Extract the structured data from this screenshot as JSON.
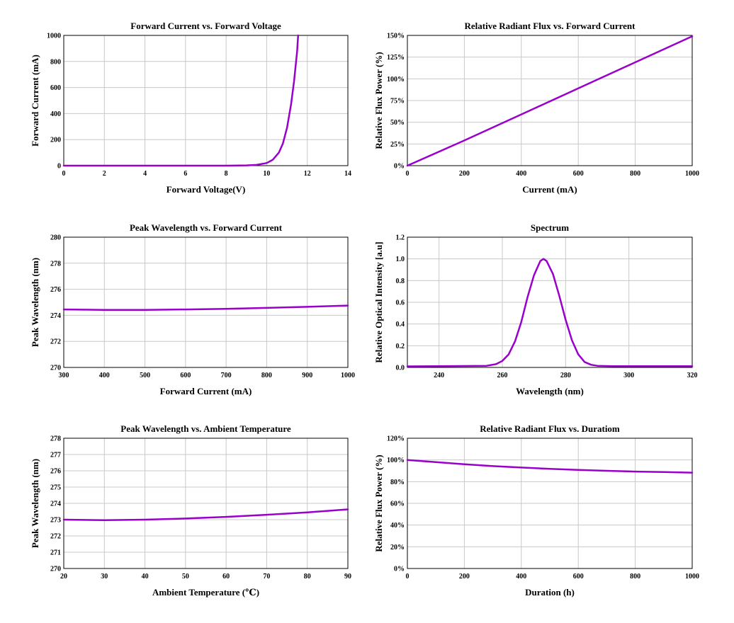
{
  "chart_data": [
    {
      "type": "line",
      "title": "Forward Current vs. Forward Voltage",
      "xlabel": "Forward Voltage(V)",
      "ylabel": "Forward Current (mA)",
      "xlim": [
        0,
        14
      ],
      "ylim": [
        0,
        1000
      ],
      "xticks": [
        0,
        2,
        4,
        6,
        8,
        10,
        12,
        14
      ],
      "yticks": [
        0,
        200,
        400,
        600,
        800,
        1000
      ],
      "xtick_labels": [
        "0",
        "2",
        "4",
        "6",
        "8",
        "10",
        "12",
        "14"
      ],
      "ytick_labels": [
        "0",
        "200",
        "400",
        "600",
        "800",
        "1000"
      ],
      "grid": true,
      "color": "#9900cc",
      "series": [
        {
          "x": [
            0,
            2,
            4,
            6,
            8,
            9,
            9.5,
            10,
            10.3,
            10.6,
            10.8,
            11.0,
            11.2,
            11.35,
            11.5,
            11.55
          ],
          "y": [
            0,
            0,
            0,
            0,
            0,
            2,
            6,
            20,
            45,
            100,
            170,
            290,
            470,
            650,
            880,
            1000
          ]
        }
      ]
    },
    {
      "type": "line",
      "title": "Relative Radiant Flux vs. Forward Current",
      "xlabel": "Current (mA)",
      "ylabel": "Relative Flux Power (%)",
      "xlim": [
        0,
        1000
      ],
      "ylim": [
        0,
        150
      ],
      "xticks": [
        0,
        200,
        400,
        600,
        800,
        1000
      ],
      "yticks": [
        0,
        25,
        50,
        75,
        100,
        125,
        150
      ],
      "xtick_labels": [
        "0",
        "200",
        "400",
        "600",
        "800",
        "1000"
      ],
      "ytick_labels": [
        "0%",
        "25%",
        "50%",
        "75%",
        "100%",
        "125%",
        "150%"
      ],
      "grid": true,
      "color": "#9900cc",
      "series": [
        {
          "x": [
            0,
            200,
            400,
            600,
            800,
            1000
          ],
          "y": [
            0,
            29,
            59,
            89,
            119,
            149
          ]
        }
      ]
    },
    {
      "type": "line",
      "title": "Peak Wavelength vs. Forward Current",
      "xlabel": "Forward Current (mA)",
      "ylabel": "Peak Wavelength (nm)",
      "xlim": [
        300,
        1000
      ],
      "ylim": [
        270,
        280
      ],
      "xticks": [
        300,
        400,
        500,
        600,
        700,
        800,
        900,
        1000
      ],
      "yticks": [
        270,
        272,
        274,
        276,
        278,
        280
      ],
      "xtick_labels": [
        "300",
        "400",
        "500",
        "600",
        "700",
        "800",
        "900",
        "1000"
      ],
      "ytick_labels": [
        "270",
        "272",
        "274",
        "276",
        "278",
        "280"
      ],
      "grid": true,
      "color": "#9900cc",
      "series": [
        {
          "x": [
            300,
            400,
            500,
            600,
            700,
            800,
            900,
            1000
          ],
          "y": [
            274.45,
            274.42,
            274.42,
            274.45,
            274.5,
            274.57,
            274.65,
            274.75
          ]
        }
      ]
    },
    {
      "type": "line",
      "title": "Spectrum",
      "xlabel": "Wavelength (nm)",
      "ylabel": "Relative Optical Intensity [a.u]",
      "xlim": [
        230,
        320
      ],
      "ylim": [
        0,
        1.2
      ],
      "xticks": [
        240,
        260,
        280,
        300,
        320
      ],
      "yticks": [
        0,
        0.2,
        0.4,
        0.6,
        0.8,
        1.0,
        1.2
      ],
      "xtick_labels": [
        "240",
        "260",
        "280",
        "300",
        "320"
      ],
      "ytick_labels": [
        "0.0",
        "0.2",
        "0.4",
        "0.6",
        "0.8",
        "1.0",
        "1.2"
      ],
      "grid": true,
      "color": "#9900cc",
      "series": [
        {
          "x": [
            230,
            255,
            258,
            260,
            262,
            264,
            266,
            268,
            270,
            272,
            273,
            274,
            276,
            278,
            280,
            282,
            284,
            286,
            288,
            290,
            295,
            320
          ],
          "y": [
            0.01,
            0.015,
            0.03,
            0.06,
            0.12,
            0.24,
            0.42,
            0.65,
            0.85,
            0.98,
            1.0,
            0.98,
            0.86,
            0.66,
            0.44,
            0.25,
            0.12,
            0.05,
            0.025,
            0.015,
            0.012,
            0.012
          ]
        }
      ]
    },
    {
      "type": "line",
      "title": "Peak Wavelength vs. Ambient Temperature",
      "xlabel": "Ambient Temperature (℃)",
      "ylabel": "Peak Wavelength (nm)",
      "xlim": [
        20,
        90
      ],
      "ylim": [
        270,
        278
      ],
      "xticks": [
        20,
        30,
        40,
        50,
        60,
        70,
        80,
        90
      ],
      "yticks": [
        270,
        271,
        272,
        273,
        274,
        275,
        276,
        277,
        278
      ],
      "xtick_labels": [
        "20",
        "30",
        "40",
        "50",
        "60",
        "70",
        "80",
        "90"
      ],
      "ytick_labels": [
        "270",
        "271",
        "272",
        "273",
        "274",
        "275",
        "276",
        "277",
        "278"
      ],
      "grid": true,
      "color": "#9900cc",
      "series": [
        {
          "x": [
            20,
            30,
            40,
            50,
            60,
            70,
            80,
            90
          ],
          "y": [
            273.0,
            272.97,
            273.0,
            273.07,
            273.17,
            273.3,
            273.45,
            273.63
          ]
        }
      ]
    },
    {
      "type": "line",
      "title": "Relative Radiant Flux vs. Duratiom",
      "xlabel": "Duration (h)",
      "ylabel": "Relative Flux Power (%)",
      "xlim": [
        0,
        1000
      ],
      "ylim": [
        0,
        120
      ],
      "xticks": [
        0,
        200,
        400,
        600,
        800,
        1000
      ],
      "yticks": [
        0,
        20,
        40,
        60,
        80,
        100,
        120
      ],
      "xtick_labels": [
        "0",
        "200",
        "400",
        "600",
        "800",
        "1000"
      ],
      "ytick_labels": [
        "0%",
        "20%",
        "40%",
        "60%",
        "80%",
        "100%",
        "120%"
      ],
      "grid": true,
      "color": "#9900cc",
      "series": [
        {
          "x": [
            0,
            100,
            200,
            300,
            400,
            500,
            600,
            700,
            800,
            900,
            1000
          ],
          "y": [
            100,
            98,
            96,
            94.3,
            93,
            91.8,
            90.8,
            90,
            89.3,
            88.8,
            88.3
          ]
        }
      ]
    }
  ]
}
